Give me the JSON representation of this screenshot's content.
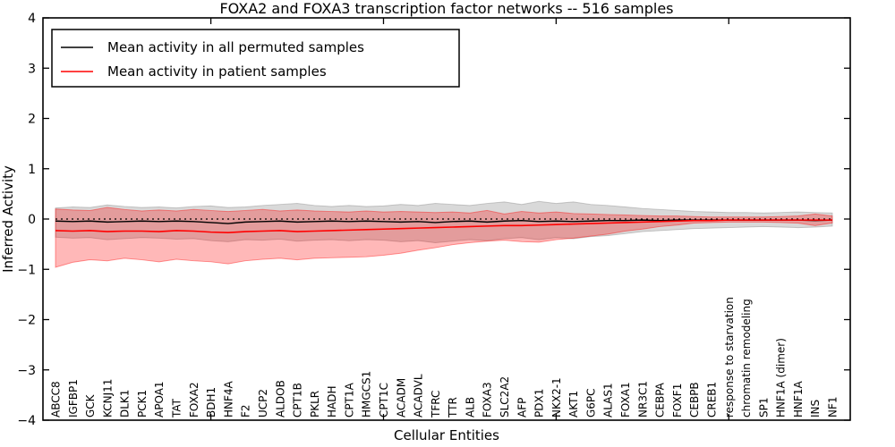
{
  "chart_data": {
    "type": "line",
    "title": "FOXA2 and FOXA3 transcription factor networks -- 516 samples",
    "xlabel": "Cellular Entities",
    "ylabel": "Inferred Activity",
    "ylim": [
      -4,
      4
    ],
    "yticks": [
      -4,
      -3,
      -2,
      -1,
      0,
      1,
      2,
      3,
      4
    ],
    "x_major_ticks": [
      10,
      20,
      30,
      40
    ],
    "grid": false,
    "legend_position": "upper left",
    "background": "#ffffff",
    "zero_line": {
      "y": 0,
      "style": "dotted",
      "color": "#000000"
    },
    "categories": [
      "ABCC8",
      "IGFBP1",
      "GCK",
      "KCNJ11",
      "DLK1",
      "PCK1",
      "APOA1",
      "TAT",
      "FOXA2",
      "BDH1",
      "HNF4A",
      "F2",
      "UCP2",
      "ALDOB",
      "CPT1B",
      "PKLR",
      "HADH",
      "CPT1A",
      "HMGCS1",
      "CPT1C",
      "ACADM",
      "ACADVL",
      "TFRC",
      "TTR",
      "ALB",
      "FOXA3",
      "SLC2A2",
      "AFP",
      "PDX1",
      "NKX2-1",
      "AKT1",
      "G6PC",
      "ALAS1",
      "FOXA1",
      "NR3C1",
      "CEBPA",
      "FOXF1",
      "CEBPB",
      "CREB1",
      "response to starvation",
      "chromatin remodeling",
      "SP1",
      "HNF1A (dimer)",
      "HNF1A",
      "INS",
      "NF1"
    ],
    "series": [
      {
        "name": "Mean activity in all permuted samples",
        "color": "#000000",
        "line_width": 1.4,
        "values": [
          -0.04,
          -0.05,
          -0.04,
          -0.06,
          -0.05,
          -0.04,
          -0.05,
          -0.04,
          -0.05,
          -0.07,
          -0.09,
          -0.06,
          -0.05,
          -0.04,
          -0.06,
          -0.05,
          -0.04,
          -0.05,
          -0.04,
          -0.05,
          -0.06,
          -0.05,
          -0.07,
          -0.05,
          -0.04,
          -0.06,
          -0.04,
          -0.03,
          -0.05,
          -0.04,
          -0.05,
          -0.04,
          -0.03,
          -0.03,
          -0.02,
          -0.03,
          -0.02,
          -0.02,
          -0.02,
          -0.02,
          -0.02,
          -0.02,
          -0.02,
          -0.02,
          -0.03,
          -0.02
        ],
        "band": {
          "upper": [
            0.22,
            0.24,
            0.23,
            0.28,
            0.25,
            0.23,
            0.24,
            0.22,
            0.25,
            0.26,
            0.23,
            0.24,
            0.27,
            0.29,
            0.31,
            0.27,
            0.25,
            0.27,
            0.25,
            0.26,
            0.29,
            0.27,
            0.31,
            0.29,
            0.27,
            0.31,
            0.34,
            0.29,
            0.35,
            0.31,
            0.34,
            0.29,
            0.27,
            0.24,
            0.21,
            0.19,
            0.17,
            0.15,
            0.14,
            0.13,
            0.13,
            0.12,
            0.13,
            0.14,
            0.13,
            0.12
          ],
          "lower": [
            -0.36,
            -0.38,
            -0.37,
            -0.41,
            -0.39,
            -0.37,
            -0.38,
            -0.4,
            -0.39,
            -0.43,
            -0.45,
            -0.41,
            -0.42,
            -0.4,
            -0.44,
            -0.42,
            -0.41,
            -0.43,
            -0.41,
            -0.42,
            -0.45,
            -0.43,
            -0.47,
            -0.44,
            -0.41,
            -0.43,
            -0.39,
            -0.37,
            -0.41,
            -0.37,
            -0.39,
            -0.35,
            -0.33,
            -0.29,
            -0.25,
            -0.23,
            -0.21,
            -0.19,
            -0.18,
            -0.17,
            -0.16,
            -0.15,
            -0.16,
            -0.17,
            -0.16,
            -0.14
          ],
          "fill": "rgba(128,128,128,0.30)",
          "edge": "rgba(110,110,110,0.35)"
        }
      },
      {
        "name": "Mean activity in patient samples",
        "color": "#ff0000",
        "line_width": 1.6,
        "values": [
          -0.23,
          -0.24,
          -0.23,
          -0.25,
          -0.24,
          -0.24,
          -0.25,
          -0.23,
          -0.24,
          -0.26,
          -0.27,
          -0.25,
          -0.24,
          -0.23,
          -0.25,
          -0.24,
          -0.23,
          -0.22,
          -0.21,
          -0.2,
          -0.19,
          -0.18,
          -0.17,
          -0.16,
          -0.15,
          -0.14,
          -0.13,
          -0.13,
          -0.12,
          -0.11,
          -0.1,
          -0.09,
          -0.08,
          -0.07,
          -0.06,
          -0.05,
          -0.04,
          -0.03,
          -0.03,
          -0.02,
          -0.02,
          -0.02,
          -0.02,
          -0.02,
          -0.02,
          -0.02
        ],
        "band": {
          "upper": [
            0.2,
            0.18,
            0.17,
            0.23,
            0.19,
            0.16,
            0.18,
            0.16,
            0.19,
            0.17,
            0.15,
            0.17,
            0.19,
            0.16,
            0.18,
            0.16,
            0.15,
            0.14,
            0.16,
            0.14,
            0.15,
            0.14,
            0.13,
            0.14,
            0.12,
            0.17,
            0.1,
            0.15,
            0.12,
            0.14,
            0.11,
            0.1,
            0.09,
            0.08,
            0.07,
            0.06,
            0.06,
            0.05,
            0.04,
            0.04,
            0.04,
            0.04,
            0.05,
            0.06,
            0.1,
            0.06
          ],
          "lower": [
            -0.96,
            -0.86,
            -0.81,
            -0.83,
            -0.78,
            -0.81,
            -0.85,
            -0.8,
            -0.83,
            -0.85,
            -0.89,
            -0.83,
            -0.8,
            -0.78,
            -0.81,
            -0.78,
            -0.77,
            -0.76,
            -0.75,
            -0.72,
            -0.68,
            -0.62,
            -0.57,
            -0.51,
            -0.47,
            -0.44,
            -0.42,
            -0.45,
            -0.46,
            -0.41,
            -0.38,
            -0.34,
            -0.3,
            -0.24,
            -0.2,
            -0.15,
            -0.12,
            -0.08,
            -0.07,
            -0.06,
            -0.06,
            -0.06,
            -0.07,
            -0.08,
            -0.13,
            -0.08
          ],
          "fill": "rgba(255,0,0,0.28)",
          "edge": "rgba(255,0,0,0.40)"
        }
      }
    ]
  }
}
